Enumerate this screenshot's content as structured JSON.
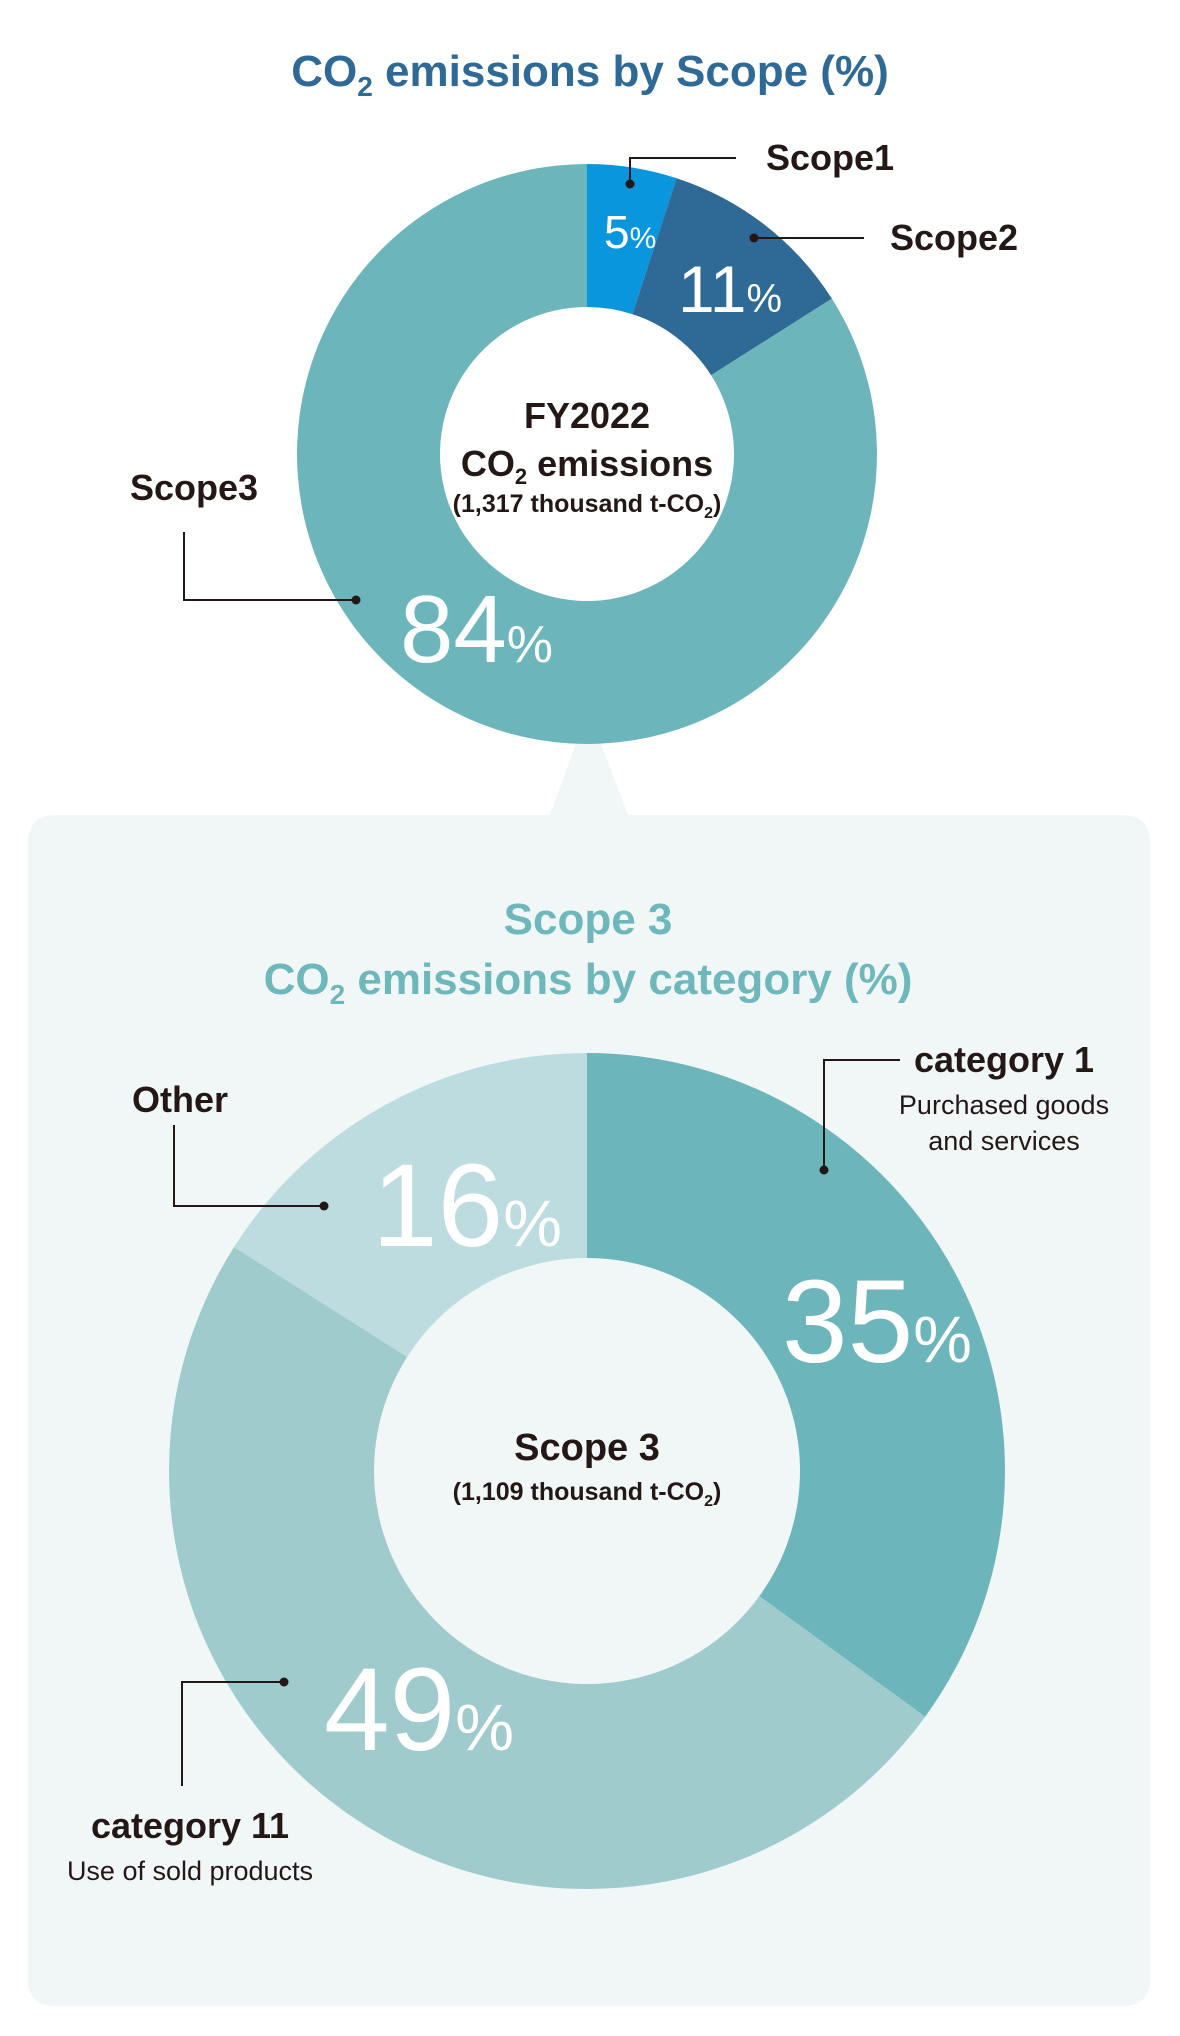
{
  "colors": {
    "scope1": "#0a96dd",
    "scope2": "#2e6a95",
    "scope3": "#6cb6bb",
    "cat1": "#6cb6bb",
    "cat11": "#a0cbcd",
    "other": "#bddcdf",
    "panel": "#f1f7f7",
    "title_blue": "#2e6a95",
    "title_teal": "#6eb7bb"
  },
  "chart_data": [
    {
      "type": "pie",
      "title_main": "CO",
      "title_sub": "2",
      "title_rest": " emissions by Scope (%)",
      "center": {
        "line1": "FY2022",
        "line2_main": "CO",
        "line2_sub": "2",
        "line2_rest": " emissions",
        "line3_main": "(1,317 thousand t-CO",
        "line3_sub": "2",
        "line3_rest": ")"
      },
      "slices": [
        {
          "name": "Scope1",
          "value": 5,
          "label_num": "5",
          "label_unit": "%"
        },
        {
          "name": "Scope2",
          "value": 11,
          "label_num": "11",
          "label_unit": "%"
        },
        {
          "name": "Scope3",
          "value": 84,
          "label_num": "84",
          "label_unit": "%"
        }
      ]
    },
    {
      "type": "pie",
      "title_line1": "Scope 3",
      "title_main": "CO",
      "title_sub": "2",
      "title_rest": " emissions by category (%)",
      "center": {
        "line1": "Scope 3",
        "line2_main": "(1,109 thousand t-CO",
        "line2_sub": "2",
        "line2_rest": ")"
      },
      "slices": [
        {
          "name": "category 1",
          "desc1": "Purchased goods",
          "desc2": "and services",
          "value": 35,
          "label_num": "35",
          "label_unit": "%"
        },
        {
          "name": "category 11",
          "desc1": "Use of sold products",
          "value": 49,
          "label_num": "49",
          "label_unit": "%"
        },
        {
          "name": "Other",
          "value": 16,
          "label_num": "16",
          "label_unit": "%"
        }
      ]
    }
  ]
}
